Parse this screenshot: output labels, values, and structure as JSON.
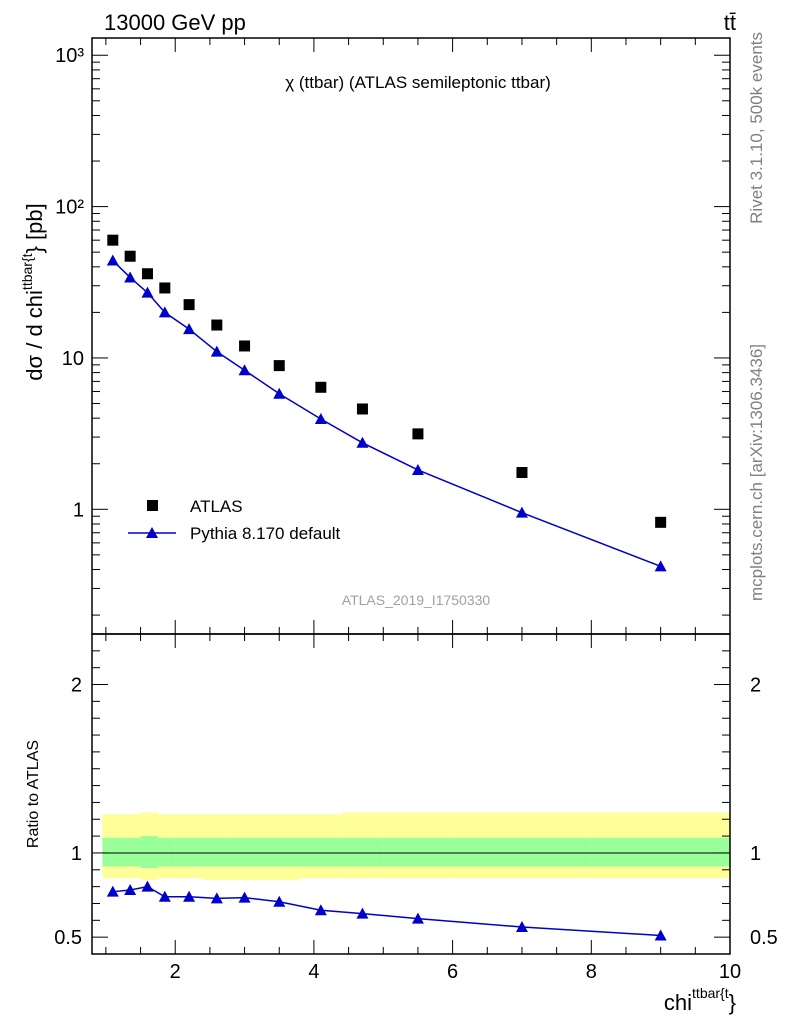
{
  "header": {
    "left": "13000 GeV pp",
    "right": "tt̄"
  },
  "side": {
    "rivet": "Rivet 3.1.10,  500k events",
    "mcplots": "mcplots.cern.ch [arXiv:1306.3436]"
  },
  "watermark": "ATLAS_2019_I1750330",
  "colors": {
    "data": "#000000",
    "mc": "#0000cc",
    "band_inner": "#99ff99",
    "band_outer": "#ffff99"
  },
  "chart_data": [
    {
      "type": "scatter",
      "title": "χ (ttbar) (ATLAS semileptonic ttbar)",
      "ylabel_main": "dσ / d chi",
      "ylabel_sup": "ttbar{t",
      "ylabel_tail": "} [pb]",
      "yscale": "log",
      "xlim": [
        0.8,
        10
      ],
      "ylim": [
        0.15,
        1300
      ],
      "ytick_labels": [
        "1",
        "10",
        "10²",
        "10³"
      ],
      "legend_position": "bottom-left",
      "series": [
        {
          "name": "ATLAS",
          "marker": "square",
          "x": [
            1.1,
            1.35,
            1.6,
            1.85,
            2.2,
            2.6,
            3.0,
            3.5,
            4.1,
            4.7,
            5.5,
            7.0,
            9.0
          ],
          "y": [
            60,
            47,
            36,
            29,
            22.5,
            16.5,
            12.0,
            8.9,
            6.4,
            4.6,
            3.15,
            1.75,
            0.82
          ]
        },
        {
          "name": "Pythia 8.170 default",
          "marker": "triangle",
          "x": [
            1.1,
            1.35,
            1.6,
            1.85,
            2.2,
            2.6,
            3.0,
            3.5,
            4.1,
            4.7,
            5.5,
            7.0,
            9.0
          ],
          "y": [
            44,
            34,
            27,
            20,
            15.5,
            11.0,
            8.3,
            5.8,
            3.95,
            2.75,
            1.82,
            0.95,
            0.42
          ]
        }
      ]
    },
    {
      "type": "line",
      "ylabel": "Ratio to ATLAS",
      "xlabel_main": "chi",
      "xlabel_sup": "ttbar{t",
      "xlabel_tail": "}",
      "xlim": [
        0.8,
        10
      ],
      "ylim": [
        0.4,
        2.3
      ],
      "xtick_labels": [
        "2",
        "4",
        "6",
        "8",
        "10"
      ],
      "ytick_labels": [
        "0.5",
        "1",
        "2"
      ],
      "band_edges": [
        0.95,
        1.25,
        1.5,
        1.75,
        2.0,
        2.4,
        2.8,
        3.2,
        3.8,
        4.4,
        5.0,
        6.0,
        8.0,
        10.0
      ],
      "band_inner_lo": [
        0.92,
        0.92,
        0.91,
        0.92,
        0.92,
        0.92,
        0.92,
        0.92,
        0.92,
        0.92,
        0.92,
        0.92,
        0.92
      ],
      "band_inner_hi": [
        1.09,
        1.09,
        1.1,
        1.09,
        1.09,
        1.09,
        1.09,
        1.09,
        1.09,
        1.09,
        1.09,
        1.09,
        1.09
      ],
      "band_outer_lo": [
        0.85,
        0.85,
        0.84,
        0.85,
        0.85,
        0.84,
        0.84,
        0.84,
        0.85,
        0.85,
        0.85,
        0.85,
        0.85
      ],
      "band_outer_hi": [
        1.23,
        1.23,
        1.24,
        1.23,
        1.23,
        1.23,
        1.23,
        1.23,
        1.23,
        1.24,
        1.24,
        1.24,
        1.24
      ],
      "series": [
        {
          "name": "Pythia 8.170 default",
          "x": [
            1.1,
            1.35,
            1.6,
            1.85,
            2.2,
            2.6,
            3.0,
            3.5,
            4.1,
            4.7,
            5.5,
            7.0,
            9.0
          ],
          "y": [
            0.77,
            0.78,
            0.8,
            0.74,
            0.74,
            0.73,
            0.735,
            0.71,
            0.66,
            0.64,
            0.61,
            0.56,
            0.51
          ],
          "err": [
            0.01,
            0.01,
            0.01,
            0.01,
            0.01,
            0.01,
            0.01,
            0.01,
            0.01,
            0.012,
            0.01,
            0.01,
            0.025
          ]
        }
      ]
    }
  ]
}
